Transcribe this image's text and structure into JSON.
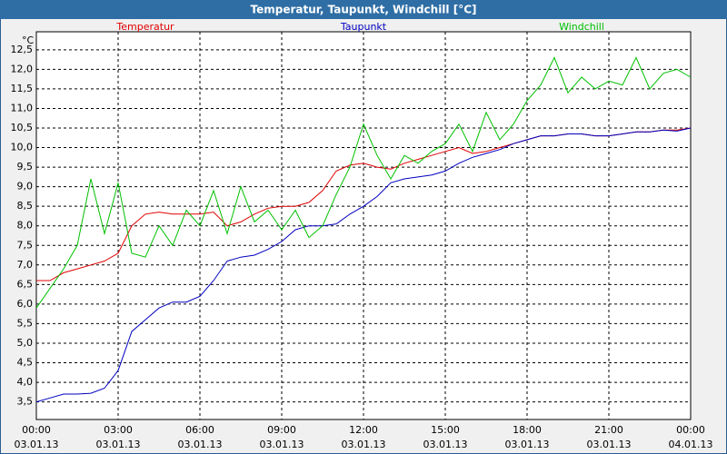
{
  "chart_data": {
    "type": "line",
    "title": "Temperatur, Taupunkt, Windchill [°C]",
    "y_unit": "°C",
    "x": [
      0,
      0.5,
      1,
      1.5,
      2,
      2.5,
      3,
      3.5,
      4,
      4.5,
      5,
      5.5,
      6,
      6.5,
      7,
      7.5,
      8,
      8.5,
      9,
      9.5,
      10,
      10.5,
      11,
      11.5,
      12,
      12.5,
      13,
      13.5,
      14,
      14.5,
      15,
      15.5,
      16,
      16.5,
      17,
      17.5,
      18,
      18.5,
      19,
      19.5,
      20,
      20.5,
      21,
      21.5,
      22,
      22.5,
      23,
      23.5,
      24
    ],
    "series": [
      {
        "name": "Temperatur",
        "color": "#e00000",
        "values": [
          6.6,
          6.6,
          6.8,
          6.9,
          7.0,
          7.1,
          7.3,
          8.0,
          8.3,
          8.35,
          8.3,
          8.3,
          8.3,
          8.35,
          8.0,
          8.1,
          8.3,
          8.45,
          8.5,
          8.5,
          8.6,
          8.9,
          9.4,
          9.55,
          9.6,
          9.5,
          9.45,
          9.6,
          9.7,
          9.8,
          9.9,
          10.0,
          9.85,
          9.9,
          10.0,
          10.1,
          10.2,
          10.3,
          10.3,
          10.35,
          10.35,
          10.3,
          10.3,
          10.35,
          10.4,
          10.4,
          10.45,
          10.45,
          10.5
        ]
      },
      {
        "name": "Taupunkt",
        "color": "#0000c0",
        "values": [
          3.5,
          3.6,
          3.7,
          3.7,
          3.72,
          3.85,
          4.3,
          5.3,
          5.6,
          5.9,
          6.05,
          6.05,
          6.2,
          6.6,
          7.1,
          7.2,
          7.25,
          7.4,
          7.6,
          7.9,
          8.0,
          8.0,
          8.05,
          8.3,
          8.5,
          8.75,
          9.1,
          9.2,
          9.25,
          9.3,
          9.4,
          9.6,
          9.75,
          9.85,
          9.95,
          10.1,
          10.2,
          10.3,
          10.3,
          10.35,
          10.35,
          10.3,
          10.3,
          10.35,
          10.4,
          10.4,
          10.45,
          10.42,
          10.5
        ]
      },
      {
        "name": "Windchill",
        "color": "#00c000",
        "values": [
          5.9,
          6.4,
          6.9,
          7.5,
          9.2,
          7.8,
          9.1,
          7.3,
          7.2,
          8.0,
          7.5,
          8.4,
          8.0,
          8.9,
          7.8,
          9.0,
          8.1,
          8.4,
          7.9,
          8.4,
          7.7,
          8.0,
          8.8,
          9.5,
          10.6,
          9.8,
          9.2,
          9.8,
          9.6,
          9.9,
          10.1,
          10.6,
          9.9,
          10.9,
          10.2,
          10.6,
          11.2,
          11.6,
          12.3,
          11.4,
          11.8,
          11.5,
          11.7,
          11.6,
          12.3,
          11.5,
          11.9,
          12.0,
          11.8
        ]
      }
    ],
    "xlim": [
      0,
      24
    ],
    "xticks": [
      {
        "value": 0,
        "label": "00:00"
      },
      {
        "value": 3,
        "label": "03:00"
      },
      {
        "value": 6,
        "label": "06:00"
      },
      {
        "value": 9,
        "label": "09:00"
      },
      {
        "value": 12,
        "label": "12:00"
      },
      {
        "value": 15,
        "label": "15:00"
      },
      {
        "value": 18,
        "label": "18:00"
      },
      {
        "value": 21,
        "label": "21:00"
      },
      {
        "value": 24,
        "label": "00:00"
      }
    ],
    "xtick_dates": [
      "03.01.13",
      "03.01.13",
      "03.01.13",
      "03.01.13",
      "03.01.13",
      "03.01.13",
      "03.01.13",
      "03.01.13",
      "04.01.13"
    ],
    "ylim": [
      3.05,
      12.96
    ],
    "yticks": [
      {
        "value": 3.5,
        "label": "3,5"
      },
      {
        "value": 4,
        "label": "4,0"
      },
      {
        "value": 4.5,
        "label": "4,5"
      },
      {
        "value": 5,
        "label": "5,0"
      },
      {
        "value": 5.5,
        "label": "5,5"
      },
      {
        "value": 6,
        "label": "6,0"
      },
      {
        "value": 6.5,
        "label": "6,5"
      },
      {
        "value": 7,
        "label": "7,0"
      },
      {
        "value": 7.5,
        "label": "7,5"
      },
      {
        "value": 8,
        "label": "8,0"
      },
      {
        "value": 8.5,
        "label": "8,5"
      },
      {
        "value": 9,
        "label": "9,0"
      },
      {
        "value": 9.5,
        "label": "9,5"
      },
      {
        "value": 10,
        "label": "10,0"
      },
      {
        "value": 10.5,
        "label": "10,5"
      },
      {
        "value": 11,
        "label": "11,0"
      },
      {
        "value": 11.5,
        "label": "11,5"
      },
      {
        "value": 12,
        "label": "12,0"
      },
      {
        "value": 12.5,
        "label": "12,5"
      }
    ],
    "grid": true
  }
}
